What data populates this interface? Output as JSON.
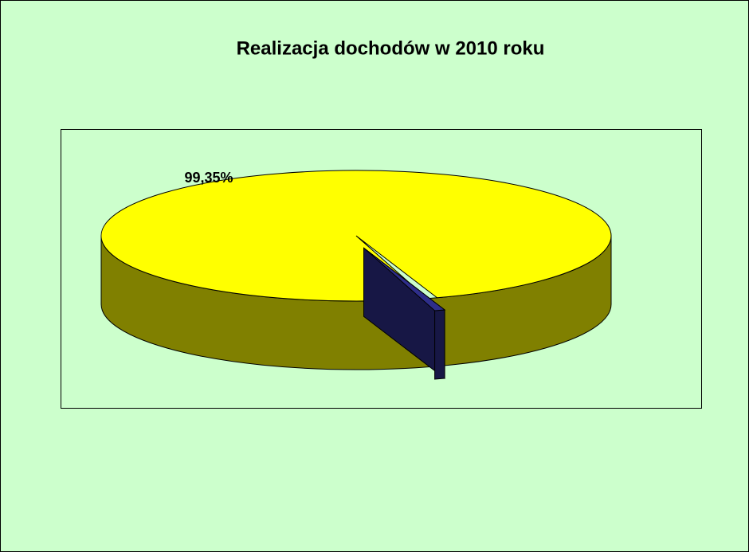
{
  "chart_data": {
    "type": "pie",
    "title": "Realizacja dochodów w 2010 roku",
    "values": [
      99.35,
      0.65
    ],
    "value_labels": [
      "99,35%",
      null
    ],
    "colors": [
      "#ffff00",
      "#2e2e8a"
    ]
  }
}
